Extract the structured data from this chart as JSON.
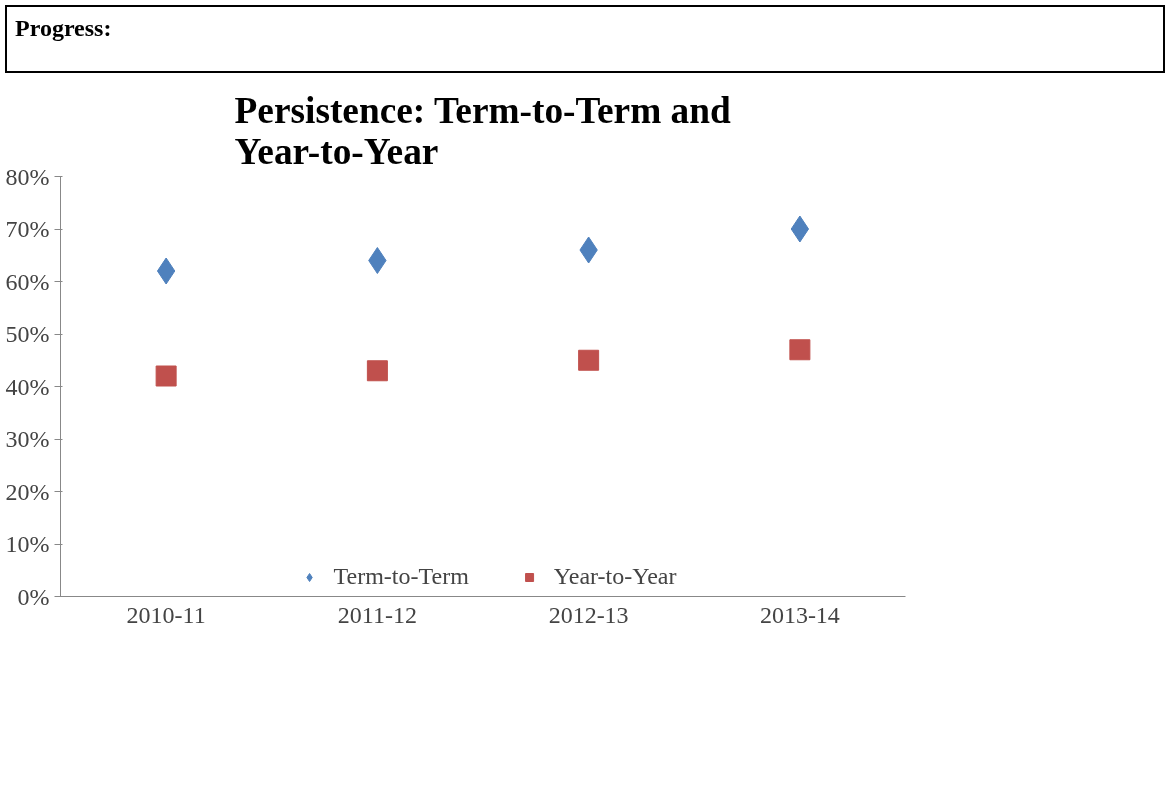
{
  "chart_data": {
    "type": "scatter",
    "title": "Persistence: Term-to-Term and\nYear-to-Year",
    "annotations": [
      "Progress:"
    ],
    "categories": [
      "2010-11",
      "2011-12",
      "2012-13",
      "2013-14"
    ],
    "series": [
      {
        "name": "Term-to-Term",
        "color": "#4f81bd",
        "values": [
          0.62,
          0.64,
          0.66,
          0.7
        ],
        "marker": "diamond"
      },
      {
        "name": "Year-to-Year",
        "color": "#c0504d",
        "values": [
          0.42,
          0.43,
          0.45,
          0.47
        ],
        "marker": "square"
      }
    ],
    "ylim": [
      0,
      0.8
    ],
    "yticks": [
      {
        "value": 0,
        "label": "0%"
      },
      {
        "value": 0.1,
        "label": "10%"
      },
      {
        "value": 0.2,
        "label": "20%"
      },
      {
        "value": 0.3,
        "label": "30%"
      },
      {
        "value": 0.4,
        "label": "40%"
      },
      {
        "value": 0.5,
        "label": "50%"
      },
      {
        "value": 0.6,
        "label": "60%"
      },
      {
        "value": 0.7,
        "label": "70%"
      },
      {
        "value": 0.8,
        "label": "80%"
      }
    ],
    "grid": false,
    "legend": "bottom"
  }
}
